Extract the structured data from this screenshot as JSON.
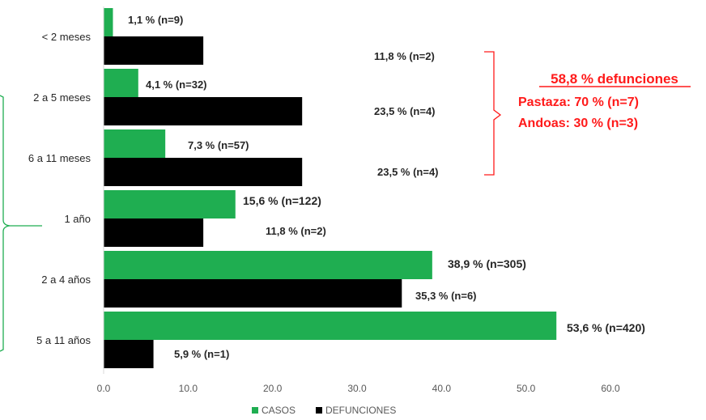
{
  "chart_data": {
    "type": "bar",
    "orientation": "horizontal",
    "categories": [
      "< 2 meses",
      "2 a 5 meses",
      "6 a 11 meses",
      "1 año",
      "2 a 4 años",
      "5 a 11 años"
    ],
    "series": [
      {
        "name": "CASOS",
        "color": "#1fae51",
        "values": [
          1.1,
          4.1,
          7.3,
          15.6,
          38.9,
          53.6
        ],
        "labels": [
          "1,1 % (n=9)",
          "4,1 % (n=32)",
          "7,3 % (n=57)",
          "15,6 % (n=122)",
          "38,9 % (n=305)",
          "53,6 % (n=420)"
        ]
      },
      {
        "name": "DEFUNCIONES",
        "color": "#000000",
        "values": [
          11.8,
          23.5,
          23.5,
          11.8,
          35.3,
          5.9
        ],
        "labels": [
          "11,8 % (n=2)",
          "23,5 % (n=4)",
          "23,5 % (n=4)",
          "11,8 % (n=2)",
          "35,3 % (n=6)",
          "5,9 % (n=1)"
        ]
      }
    ],
    "xlim": [
      0,
      60
    ],
    "xticks": [
      "0.0",
      "10.0",
      "20.0",
      "30.0",
      "40.0",
      "50.0",
      "60.0"
    ],
    "title": "",
    "xlabel": "",
    "ylabel": "",
    "grid": false,
    "legend_position": "bottom",
    "annotation": {
      "title": "58,8 %  defunciones",
      "lines": [
        "Pastaza: 70 % (n=7)",
        "Andoas: 30 % (n=3)"
      ],
      "color": "#ff1a1a"
    },
    "bracket_color_left": "#1fae51"
  }
}
